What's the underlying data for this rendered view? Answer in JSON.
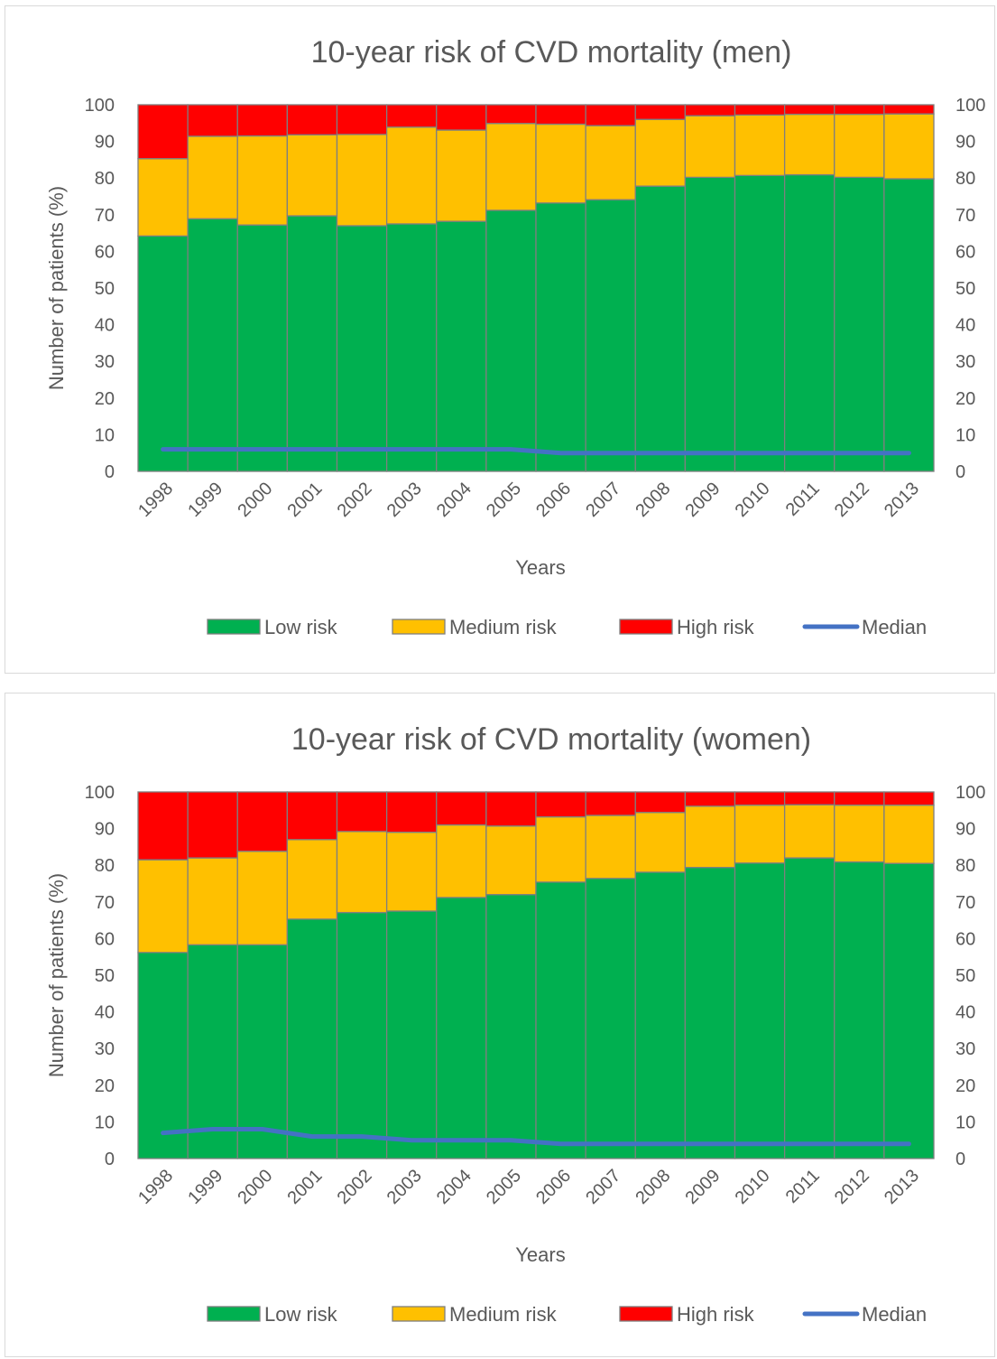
{
  "chart_data": [
    {
      "type": "bar",
      "stacked": true,
      "title": "10-year risk of CVD mortality (men)",
      "xlabel": "Years",
      "ylabel": "Number of patients (%)",
      "ylim": [
        0,
        100
      ],
      "yticks": [
        0,
        10,
        20,
        30,
        40,
        50,
        60,
        70,
        80,
        90,
        100
      ],
      "secondary_yticks": [
        0,
        10,
        20,
        30,
        40,
        50,
        60,
        70,
        80,
        90,
        100
      ],
      "categories": [
        "1998",
        "1999",
        "2000",
        "2001",
        "2002",
        "2003",
        "2004",
        "2005",
        "2006",
        "2007",
        "2008",
        "2009",
        "2010",
        "2011",
        "2012",
        "2013"
      ],
      "series": [
        {
          "name": "Low risk",
          "color": "#00b050",
          "values": [
            64.2,
            68.9,
            67.2,
            69.7,
            67.0,
            67.5,
            68.2,
            71.2,
            73.2,
            74.1,
            77.8,
            80.2,
            80.7,
            80.9,
            80.2,
            79.8
          ]
        },
        {
          "name": "Medium risk",
          "color": "#ffc000",
          "values": [
            21.1,
            22.5,
            24.3,
            22.1,
            24.9,
            26.4,
            24.9,
            23.7,
            21.5,
            20.2,
            18.2,
            16.8,
            16.5,
            16.5,
            17.2,
            17.7
          ]
        },
        {
          "name": "High risk",
          "color": "#ff0000",
          "values": [
            14.7,
            8.6,
            8.5,
            8.2,
            8.1,
            6.1,
            6.9,
            5.1,
            5.3,
            5.7,
            4.0,
            3.0,
            2.8,
            2.6,
            2.6,
            2.5
          ]
        }
      ],
      "line": {
        "name": "Median",
        "color": "#4472c4",
        "values": [
          6,
          6,
          6,
          6,
          6,
          6,
          6,
          6,
          5,
          5,
          5,
          5,
          5,
          5,
          5,
          5
        ]
      },
      "legend": {
        "position": "bottom",
        "items": [
          "Low risk",
          "Medium risk",
          "High risk",
          "Median"
        ]
      }
    },
    {
      "type": "bar",
      "stacked": true,
      "title": "10-year risk of CVD mortality (women)",
      "xlabel": "Years",
      "ylabel": "Number of patients (%)",
      "ylim": [
        0,
        100
      ],
      "yticks": [
        0,
        10,
        20,
        30,
        40,
        50,
        60,
        70,
        80,
        90,
        100
      ],
      "secondary_yticks": [
        0,
        10,
        20,
        30,
        40,
        50,
        60,
        70,
        80,
        90,
        100
      ],
      "categories": [
        "1998",
        "1999",
        "2000",
        "2001",
        "2002",
        "2003",
        "2004",
        "2005",
        "2006",
        "2007",
        "2008",
        "2009",
        "2010",
        "2011",
        "2012",
        "2013"
      ],
      "series": [
        {
          "name": "Low risk",
          "color": "#00b050",
          "values": [
            56.2,
            58.3,
            58.3,
            65.3,
            67.1,
            67.5,
            71.2,
            72.0,
            75.4,
            76.4,
            78.1,
            79.4,
            80.6,
            82.0,
            80.9,
            80.5
          ]
        },
        {
          "name": "Medium risk",
          "color": "#ffc000",
          "values": [
            25.3,
            23.7,
            25.5,
            21.7,
            22.1,
            21.5,
            19.8,
            18.7,
            17.8,
            17.2,
            16.3,
            16.7,
            15.8,
            14.5,
            15.5,
            15.9
          ]
        },
        {
          "name": "High risk",
          "color": "#ff0000",
          "values": [
            18.5,
            18.0,
            16.2,
            13.0,
            10.8,
            11.0,
            9.0,
            9.3,
            6.8,
            6.4,
            5.6,
            3.9,
            3.6,
            3.5,
            3.6,
            3.6
          ]
        }
      ],
      "line": {
        "name": "Median",
        "color": "#4472c4",
        "values": [
          7,
          8,
          8,
          6,
          6,
          5,
          5,
          5,
          4,
          4,
          4,
          4,
          4,
          4,
          4,
          4
        ]
      },
      "legend": {
        "position": "bottom",
        "items": [
          "Low risk",
          "Medium risk",
          "High risk",
          "Median"
        ]
      }
    }
  ]
}
